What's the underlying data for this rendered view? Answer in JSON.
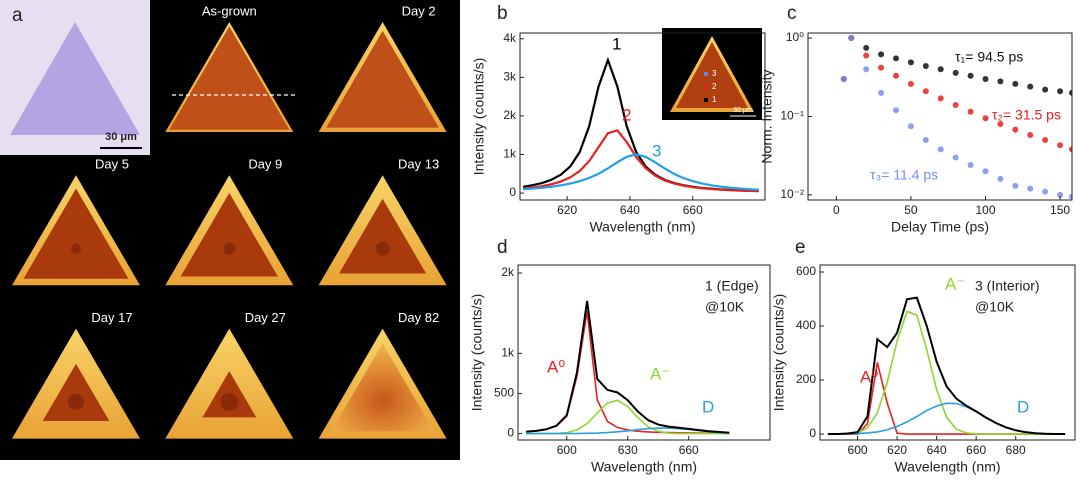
{
  "panel_a": {
    "label": "a",
    "scale_bar": "30 μm",
    "tiles": [
      "As-grown",
      "Day 2",
      "Day 5",
      "Day 9",
      "Day 13",
      "Day 17",
      "Day 27",
      "Day 82"
    ]
  },
  "chart_data": [
    {
      "type": "line",
      "panel_label": "b",
      "xlabel": "Wavelength (nm)",
      "ylabel": "Intensity (counts/s)",
      "x": [
        606,
        609,
        612,
        615,
        618,
        621,
        624,
        627,
        630,
        633,
        636,
        639,
        642,
        645,
        648,
        651,
        654,
        657,
        660,
        663,
        666,
        669,
        672,
        675,
        678,
        681
      ],
      "series": [
        {
          "name": "1",
          "color": "#000000",
          "values": [
            162,
            203,
            260,
            345,
            476,
            690,
            1062,
            1725,
            2760,
            3450,
            2760,
            1725,
            1062,
            690,
            476,
            345,
            260,
            203,
            162,
            133,
            111,
            93,
            80,
            69,
            60,
            53
          ]
        },
        {
          "name": "2",
          "color": "#e82020",
          "values": [
            117,
            143,
            178,
            228,
            299,
            406,
            571,
            825,
            1187,
            1553,
            1625,
            1320,
            934,
            644,
            453,
            330,
            248,
            193,
            153,
            125,
            103,
            87,
            74,
            63,
            55,
            49
          ]
        },
        {
          "name": "3",
          "color": "#1ea0e6",
          "values": [
            100,
            117,
            138,
            165,
            200,
            246,
            308,
            390,
            500,
            640,
            800,
            941,
            1000,
            941,
            800,
            640,
            500,
            390,
            308,
            246,
            200,
            165,
            138,
            117,
            100,
            87
          ]
        }
      ],
      "xlim": [
        605,
        683
      ],
      "ylim": [
        -180,
        4150
      ],
      "xticks": [
        620,
        640,
        660
      ],
      "yticks": [
        0,
        {
          "value": 1000,
          "label": "1k"
        },
        {
          "value": 2000,
          "label": "2k"
        },
        {
          "value": 3000,
          "label": "3k"
        },
        {
          "value": 4000,
          "label": "4k"
        }
      ],
      "inset": {
        "labels": [
          "3",
          "2",
          "1"
        ],
        "scale_bar": "30 μm"
      }
    },
    {
      "type": "scatter",
      "panel_label": "c",
      "xlabel": "Delay Time (ps)",
      "ylabel": "Norm. Intensity",
      "ylog": true,
      "x": [
        5,
        10,
        20,
        30,
        40,
        50,
        60,
        70,
        80,
        90,
        100,
        110,
        120,
        130,
        140,
        150,
        158
      ],
      "series": [
        {
          "name": "τ₁= 94.5 ps",
          "color": "#111111",
          "values": [
            0.3,
            1,
            0.75,
            0.62,
            0.55,
            0.49,
            0.44,
            0.4,
            0.36,
            0.33,
            0.3,
            0.28,
            0.26,
            0.24,
            0.22,
            0.21,
            0.2
          ]
        },
        {
          "name": "τ₂= 31.5 ps",
          "color": "#e82020",
          "values": [
            0.3,
            1,
            0.6,
            0.42,
            0.33,
            0.26,
            0.21,
            0.17,
            0.14,
            0.115,
            0.095,
            0.08,
            0.068,
            0.058,
            0.05,
            0.043,
            0.038
          ]
        },
        {
          "name": "τ₃= 11.4 ps",
          "color": "#7b8cf0",
          "values": [
            0.3,
            1,
            0.4,
            0.2,
            0.12,
            0.075,
            0.05,
            0.038,
            0.03,
            0.024,
            0.02,
            0.016,
            0.013,
            0.012,
            0.011,
            0.01,
            0.0095
          ]
        }
      ],
      "xlim": [
        -19,
        158
      ],
      "ylim": [
        0.0086,
        1.16
      ],
      "xticks": [
        0,
        50,
        100,
        150
      ],
      "yticks": [
        {
          "value": 1,
          "label": "10⁰"
        },
        {
          "value": 0.1,
          "label": "10⁻¹"
        },
        {
          "value": 0.01,
          "label": "10⁻²"
        }
      ]
    },
    {
      "type": "line",
      "panel_label": "d",
      "xlabel": "Wavelength (nm)",
      "ylabel": "Intensity (counts/s)",
      "annotations": [
        "1 (Edge)",
        "@10K"
      ],
      "x": [
        580,
        585,
        590,
        595,
        600,
        605,
        610,
        615,
        620,
        625,
        630,
        635,
        640,
        645,
        650,
        655,
        660,
        665,
        670,
        675,
        680
      ],
      "series": [
        {
          "name": "A⁰",
          "color": "#e82020",
          "values": [
            24,
            34,
            54,
            97,
            217,
            715,
            1525,
            419,
            152,
            75,
            45,
            29,
            21,
            15,
            12,
            9.5,
            7.7,
            6.4,
            5.4,
            4.6,
            4
          ]
        },
        {
          "name": "A⁻",
          "color": "#8fd62e",
          "values": [
            0,
            0,
            0,
            2,
            12,
            45,
            125,
            255,
            380,
            415,
            336,
            198,
            86,
            28,
            6,
            0,
            0,
            0,
            0,
            0,
            0
          ]
        },
        {
          "name": "D",
          "color": "#2a9fe0",
          "values": [
            0,
            0,
            0,
            0,
            0,
            1,
            3,
            6,
            12,
            22,
            34,
            48,
            61,
            69,
            69,
            63,
            51,
            37,
            24,
            14,
            7
          ]
        }
      ],
      "fit": {
        "color": "#000000",
        "values": [
          24,
          34,
          54,
          99,
          229,
          761,
          1653,
          680,
          544,
          512,
          415,
          275,
          168,
          112,
          87,
          73,
          59,
          43,
          29,
          19,
          11
        ]
      },
      "xlim": [
        576,
        700
      ],
      "ylim": [
        -80,
        2100
      ],
      "xticks": [
        600,
        630,
        660
      ],
      "yticks": [
        0,
        500,
        {
          "value": 1000,
          "label": "1k"
        },
        {
          "value": 2000,
          "label": "2k"
        }
      ]
    },
    {
      "type": "line",
      "panel_label": "e",
      "xlabel": "Wavelength (nm)",
      "ylabel": "Intensity (counts/s)",
      "annotations": [
        "3 (Interior)",
        "@10K"
      ],
      "x": [
        585,
        590,
        595,
        600,
        605,
        610,
        615,
        620,
        625,
        630,
        635,
        640,
        645,
        650,
        655,
        660,
        665,
        670,
        675,
        680,
        685,
        690,
        695,
        700,
        705
      ],
      "series": [
        {
          "name": "A⁰",
          "color": "#e82020",
          "values": [
            0,
            0,
            0,
            0,
            38,
            265,
            115,
            3,
            0,
            0,
            0,
            0,
            0,
            0,
            0,
            0,
            0,
            0,
            0,
            0,
            0,
            0,
            0,
            0,
            0
          ]
        },
        {
          "name": "A⁻",
          "color": "#8fd62e",
          "values": [
            0,
            0,
            1,
            5,
            23,
            78,
            191,
            344,
            454,
            440,
            313,
            164,
            63,
            18,
            4,
            1,
            0,
            0,
            0,
            0,
            0,
            0,
            0,
            0,
            0
          ]
        },
        {
          "name": "D",
          "color": "#2a9fe0",
          "values": [
            0,
            0,
            1,
            2,
            4,
            8,
            16,
            28,
            45,
            65,
            87,
            104,
            114,
            113,
            101,
            83,
            61,
            41,
            25,
            14,
            7,
            3,
            1,
            0,
            0
          ]
        }
      ],
      "fit": {
        "color": "#000000",
        "values": [
          0,
          0,
          2,
          7,
          65,
          351,
          322,
          375,
          499,
          505,
          400,
          268,
          177,
          131,
          105,
          84,
          61,
          41,
          25,
          14,
          7,
          3,
          1,
          0,
          0
        ]
      },
      "xlim": [
        581,
        710
      ],
      "ylim": [
        -22,
        626
      ],
      "xticks": [
        600,
        620,
        640,
        660,
        680
      ],
      "yticks": [
        0,
        200,
        400,
        600
      ]
    }
  ]
}
